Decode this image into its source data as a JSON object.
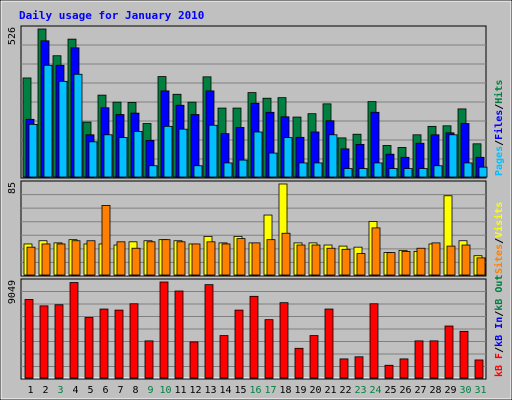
{
  "title": "Daily usage for January 2010",
  "colors": {
    "background": "#ffffff",
    "frame": "#c0c0c0",
    "plot": "#c0c0c0",
    "title": "#0000ff",
    "hits": "#008040",
    "files": "#0000ff",
    "pages": "#00c0ff",
    "visits": "#ffff00",
    "sites": "#ff8000",
    "kbin": "#ff0000",
    "kbout": "#ff8000",
    "gridline": "#808080",
    "axis_label": "#000000",
    "weekend_label": "#008040"
  },
  "chart_data": [
    {
      "type": "bar",
      "panel": "hits-files-pages",
      "ymax_label": "526",
      "ymax": 526,
      "legend": [
        {
          "name": "Pages",
          "color": "#00c0ff"
        },
        {
          "name": "Files",
          "color": "#0000ff"
        },
        {
          "name": "Hits",
          "color": "#008040"
        }
      ],
      "categories": [
        "1",
        "2",
        "3",
        "4",
        "5",
        "6",
        "7",
        "8",
        "9",
        "10",
        "11",
        "12",
        "13",
        "14",
        "15",
        "16",
        "17",
        "18",
        "19",
        "20",
        "21",
        "22",
        "23",
        "24",
        "25",
        "26",
        "27",
        "28",
        "29",
        "30",
        "31"
      ],
      "series": [
        {
          "name": "Hits",
          "values": [
            352,
            526,
            431,
            490,
            195,
            291,
            266,
            265,
            190,
            357,
            294,
            266,
            356,
            245,
            245,
            300,
            280,
            282,
            213,
            225,
            260,
            139,
            152,
            268,
            112,
            105,
            150,
            180,
            182,
            242,
            118
          ]
        },
        {
          "name": "Files",
          "values": [
            205,
            484,
            397,
            459,
            150,
            246,
            222,
            227,
            130,
            306,
            255,
            222,
            306,
            154,
            176,
            262,
            230,
            214,
            141,
            160,
            200,
            100,
            116,
            230,
            81,
            70,
            120,
            150,
            157,
            190,
            70
          ]
        },
        {
          "name": "Pages",
          "values": [
            187,
            397,
            340,
            365,
            125,
            150,
            140,
            162,
            40,
            180,
            170,
            40,
            184,
            50,
            60,
            160,
            85,
            140,
            50,
            50,
            150,
            30,
            30,
            50,
            30,
            30,
            30,
            40,
            150,
            50,
            35
          ]
        }
      ]
    },
    {
      "type": "bar",
      "panel": "visits-sites",
      "ymax_label": "85",
      "ymax": 85,
      "legend": [
        {
          "name": "Sites",
          "color": "#ff8000"
        },
        {
          "name": "/",
          "color": "#000000"
        },
        {
          "name": "Visits",
          "color": "#ffff00"
        }
      ],
      "categories": [
        "1",
        "2",
        "3",
        "4",
        "5",
        "6",
        "7",
        "8",
        "9",
        "10",
        "11",
        "12",
        "13",
        "14",
        "15",
        "16",
        "17",
        "18",
        "19",
        "20",
        "21",
        "22",
        "23",
        "24",
        "25",
        "26",
        "27",
        "28",
        "29",
        "30",
        "31"
      ],
      "series": [
        {
          "name": "Visits",
          "values": [
            29,
            32,
            30,
            33,
            29,
            29,
            28,
            31,
            32,
            33,
            32,
            29,
            36,
            30,
            36,
            30,
            56,
            85,
            30,
            30,
            28,
            27,
            26,
            50,
            21,
            23,
            22,
            29,
            74,
            32,
            18
          ]
        },
        {
          "name": "Sites",
          "values": [
            26,
            29,
            29,
            32,
            32,
            65,
            31,
            25,
            31,
            33,
            31,
            29,
            31,
            29,
            34,
            30,
            33,
            39,
            28,
            28,
            25,
            24,
            20,
            44,
            21,
            22,
            25,
            30,
            27,
            28,
            16
          ]
        }
      ]
    },
    {
      "type": "bar",
      "panel": "kbin-kbout",
      "ymax_label": "9049",
      "ymax": 9049,
      "legend": [
        {
          "name": "kB F",
          "color": "#ff0000"
        },
        {
          "name": "/",
          "color": "#000000"
        },
        {
          "name": "kB In",
          "color": "#0000ff"
        },
        {
          "name": "/",
          "color": "#000000"
        },
        {
          "name": "kB Out",
          "color": "#008040"
        }
      ],
      "categories": [
        "1",
        "2",
        "3",
        "4",
        "5",
        "6",
        "7",
        "8",
        "9",
        "10",
        "11",
        "12",
        "13",
        "14",
        "15",
        "16",
        "17",
        "18",
        "19",
        "20",
        "21",
        "22",
        "23",
        "24",
        "25",
        "26",
        "27",
        "28",
        "29",
        "30",
        "31"
      ],
      "series": [
        {
          "name": "kB F",
          "values": [
            7400,
            6800,
            6900,
            9000,
            5700,
            6500,
            6400,
            7000,
            3500,
            9049,
            8200,
            3400,
            8800,
            4000,
            6400,
            7700,
            5500,
            7100,
            2800,
            4000,
            6500,
            1800,
            2000,
            7000,
            1200,
            1800,
            3500,
            3500,
            4900,
            4400,
            1700
          ]
        }
      ]
    }
  ],
  "weekend_days": [
    3,
    9,
    10,
    16,
    17,
    23,
    24,
    30,
    31
  ]
}
